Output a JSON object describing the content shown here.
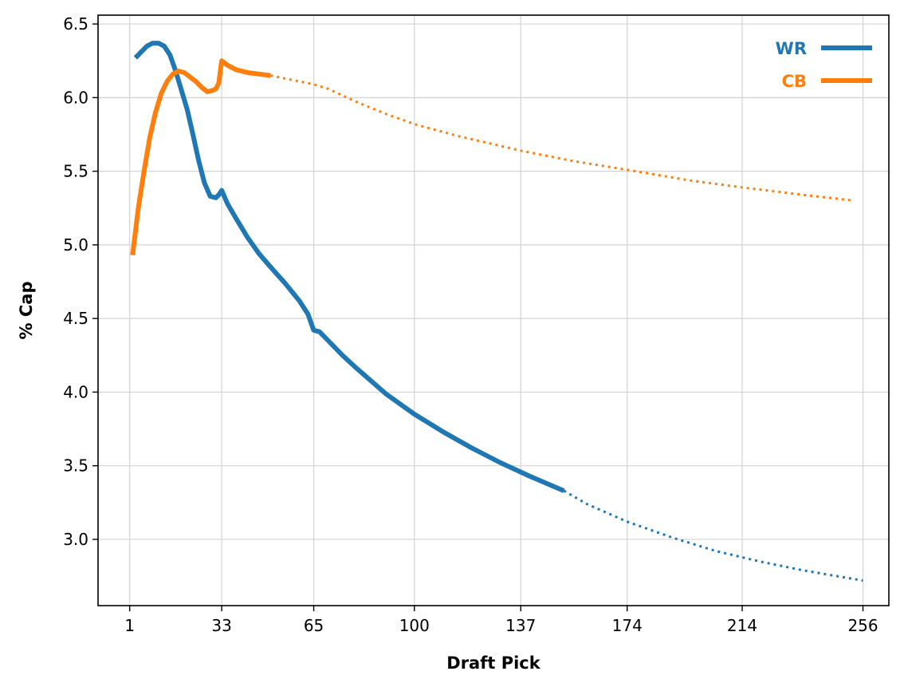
{
  "chart_data": {
    "type": "line",
    "title": "",
    "xlabel": "Draft Pick",
    "ylabel": "% Cap",
    "xlim": [
      -10,
      265
    ],
    "ylim": [
      2.55,
      6.56
    ],
    "x_ticks": [
      1,
      33,
      65,
      100,
      137,
      174,
      214,
      256
    ],
    "x_tick_labels": [
      "1",
      "33",
      "65",
      "100",
      "137",
      "174",
      "214",
      "256"
    ],
    "y_ticks": [
      3.0,
      3.5,
      4.0,
      4.5,
      5.0,
      5.5,
      6.0,
      6.5
    ],
    "y_tick_labels": [
      "3.0",
      "3.5",
      "4.0",
      "4.5",
      "5.0",
      "5.5",
      "6.0",
      "6.5"
    ],
    "grid": true,
    "legend_position": "top-right",
    "series": [
      {
        "name": "WR",
        "color": "#1f77b4",
        "solid": [
          [
            3,
            6.27
          ],
          [
            5,
            6.31
          ],
          [
            7,
            6.35
          ],
          [
            9,
            6.37
          ],
          [
            11,
            6.37
          ],
          [
            13,
            6.35
          ],
          [
            15,
            6.29
          ],
          [
            17,
            6.18
          ],
          [
            19,
            6.05
          ],
          [
            21,
            5.92
          ],
          [
            23,
            5.75
          ],
          [
            25,
            5.57
          ],
          [
            27,
            5.42
          ],
          [
            29,
            5.33
          ],
          [
            31,
            5.32
          ],
          [
            32,
            5.34
          ],
          [
            33,
            5.37
          ],
          [
            35,
            5.28
          ],
          [
            38,
            5.18
          ],
          [
            42,
            5.05
          ],
          [
            46,
            4.94
          ],
          [
            50,
            4.85
          ],
          [
            55,
            4.74
          ],
          [
            60,
            4.62
          ],
          [
            63,
            4.53
          ],
          [
            65,
            4.42
          ],
          [
            67,
            4.41
          ],
          [
            70,
            4.35
          ],
          [
            75,
            4.25
          ],
          [
            80,
            4.16
          ],
          [
            90,
            3.99
          ],
          [
            100,
            3.85
          ],
          [
            110,
            3.73
          ],
          [
            120,
            3.62
          ],
          [
            130,
            3.52
          ],
          [
            140,
            3.43
          ],
          [
            152,
            3.33
          ]
        ],
        "projected": [
          [
            152,
            3.33
          ],
          [
            160,
            3.24
          ],
          [
            174,
            3.12
          ],
          [
            190,
            3.01
          ],
          [
            205,
            2.92
          ],
          [
            220,
            2.85
          ],
          [
            235,
            2.79
          ],
          [
            250,
            2.74
          ],
          [
            256,
            2.72
          ]
        ]
      },
      {
        "name": "CB",
        "color": "#ff7f0e",
        "solid": [
          [
            2,
            4.93
          ],
          [
            4,
            5.25
          ],
          [
            6,
            5.5
          ],
          [
            8,
            5.73
          ],
          [
            10,
            5.9
          ],
          [
            12,
            6.03
          ],
          [
            14,
            6.11
          ],
          [
            16,
            6.16
          ],
          [
            18,
            6.18
          ],
          [
            20,
            6.17
          ],
          [
            22,
            6.14
          ],
          [
            24,
            6.11
          ],
          [
            26,
            6.07
          ],
          [
            28,
            6.04
          ],
          [
            30,
            6.05
          ],
          [
            31,
            6.06
          ],
          [
            32,
            6.1
          ],
          [
            33,
            6.25
          ],
          [
            35,
            6.22
          ],
          [
            38,
            6.19
          ],
          [
            42,
            6.17
          ],
          [
            46,
            6.16
          ],
          [
            50,
            6.15
          ]
        ],
        "projected": [
          [
            50,
            6.15
          ],
          [
            55,
            6.13
          ],
          [
            60,
            6.11
          ],
          [
            65,
            6.09
          ],
          [
            70,
            6.06
          ],
          [
            80,
            5.97
          ],
          [
            90,
            5.89
          ],
          [
            100,
            5.82
          ],
          [
            115,
            5.74
          ],
          [
            137,
            5.64
          ],
          [
            155,
            5.57
          ],
          [
            174,
            5.51
          ],
          [
            195,
            5.44
          ],
          [
            214,
            5.39
          ],
          [
            235,
            5.34
          ],
          [
            253,
            5.3
          ]
        ]
      }
    ]
  }
}
